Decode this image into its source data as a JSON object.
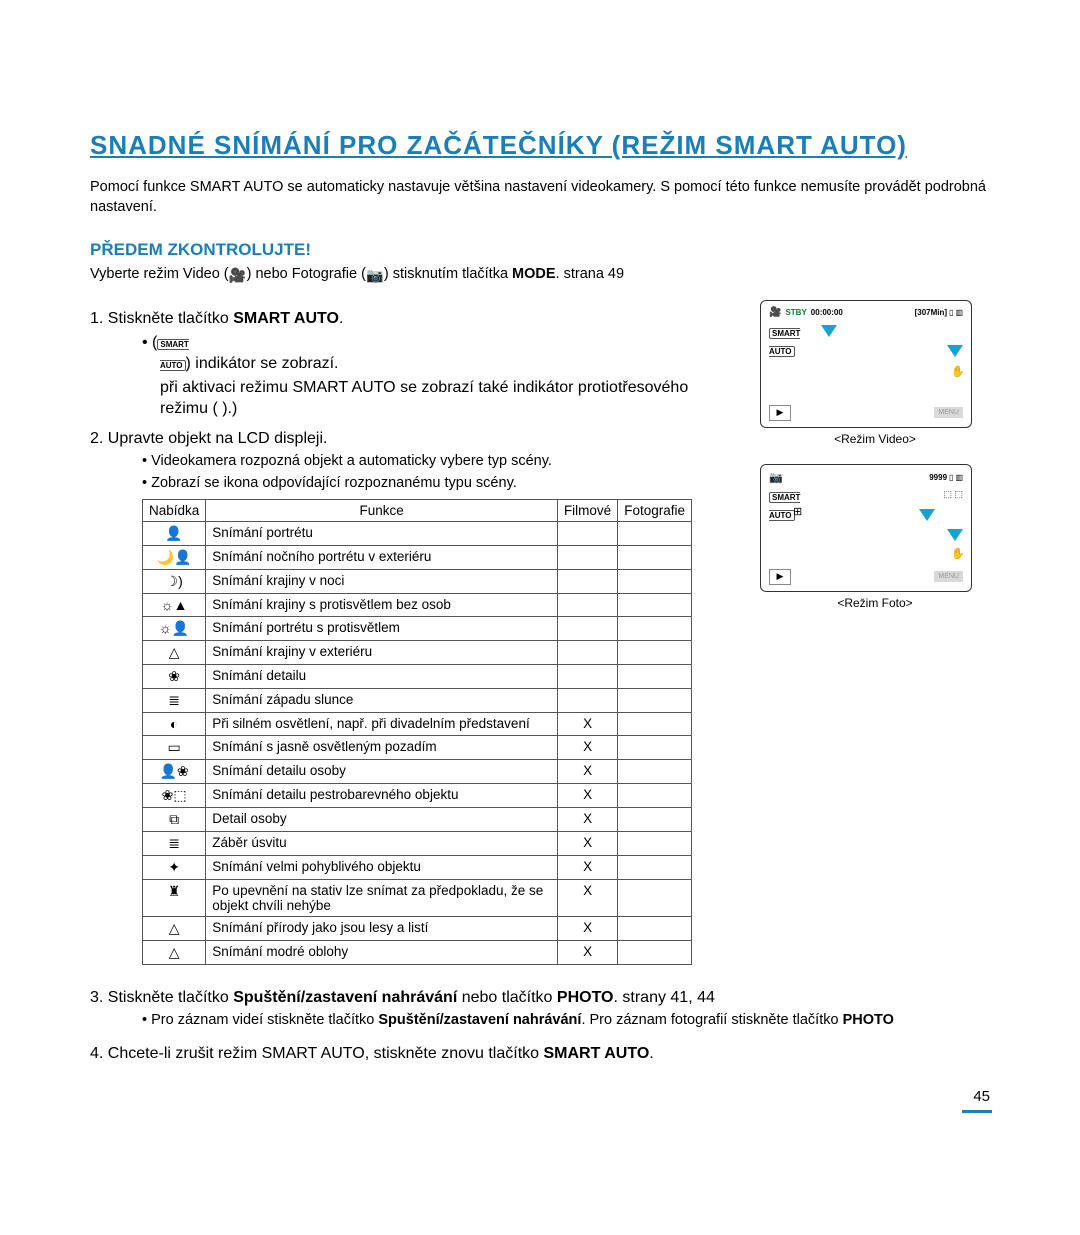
{
  "title": "SNADNÉ SNÍMÁNÍ PRO ZAČÁTEČNÍKY (REŽIM SMART AUTO)",
  "intro": "Pomocí funkce SMART AUTO se automaticky nastavuje většina nastavení videokamery. S pomocí této funkce nemusíte provádět podrobná nastavení.",
  "subhead": "PŘEDEM ZKONTROLUJTE!",
  "preinstr_pre": "Vyberte režim Video (",
  "preinstr_mid": ") nebo Fotografie (",
  "preinstr_post": ") stisknutím tlačítka ",
  "preinstr_mode": "MODE",
  "preinstr_page": ". strana 49",
  "step1_num": "1.",
  "step1_a": " Stiskněte tlačítko ",
  "step1_b": "SMART AUTO",
  "step1_c": ".",
  "step1_sub1_a": "(",
  "step1_sub1_b": ") indikátor se zobrazí.",
  "step1_sub2": "při aktivaci režimu SMART AUTO se zobrazí také indikátor protiotřesového režimu (          ).)",
  "step2_num": "2.",
  "step2_txt": " Upravte objekt na LCD displeji.",
  "step2_sub1": "Videokamera rozpozná objekt a automaticky vybere typ scény.",
  "step2_sub2": "Zobrazí se ikona odpovídající rozpoznanému typu scény.",
  "table": {
    "headers": [
      "Nabídka",
      "Funkce",
      "Filmové",
      "Fotografie"
    ],
    "rows": [
      {
        "icon": "👤",
        "fn": "Snímání portrétu",
        "m": "",
        "f": ""
      },
      {
        "icon": "🌙👤",
        "fn": "Snímání nočního portrétu v exteriéru",
        "m": "",
        "f": ""
      },
      {
        "icon": "☽)",
        "fn": "Snímání krajiny v noci",
        "m": "",
        "f": ""
      },
      {
        "icon": "☼▲",
        "fn": "Snímání krajiny s protisvětlem bez osob",
        "m": "",
        "f": ""
      },
      {
        "icon": "☼👤",
        "fn": "Snímání portrétu s protisvětlem",
        "m": "",
        "f": ""
      },
      {
        "icon": "△",
        "fn": "Snímání krajiny v exteriéru",
        "m": "",
        "f": ""
      },
      {
        "icon": "❀",
        "fn": "Snímání detailu",
        "m": "",
        "f": ""
      },
      {
        "icon": "≣",
        "fn": "Snímání západu slunce",
        "m": "",
        "f": ""
      },
      {
        "icon": "◐",
        "fn": "Při silném osvětlení, např. při divadelním představení",
        "m": "X",
        "f": ""
      },
      {
        "icon": "▭",
        "fn": "Snímání s jasně osvětleným pozadím",
        "m": "X",
        "f": ""
      },
      {
        "icon": "👤❀",
        "fn": "Snímání detailu osoby",
        "m": "X",
        "f": ""
      },
      {
        "icon": "❀⬚",
        "fn": "Snímání detailu pestrobarevného objektu",
        "m": "X",
        "f": ""
      },
      {
        "icon": "⧉",
        "fn": "Detail osoby",
        "m": "X",
        "f": ""
      },
      {
        "icon": "≣",
        "fn": "Záběr úsvitu",
        "m": "X",
        "f": ""
      },
      {
        "icon": "✦",
        "fn": "Snímání velmi pohyblivého objektu",
        "m": "X",
        "f": ""
      },
      {
        "icon": "♜",
        "fn": "Po upevnění na stativ lze snímat za předpokladu, že se objekt chvíli nehýbe",
        "m": "X",
        "f": ""
      },
      {
        "icon": "△",
        "fn": "Snímání přírody jako jsou lesy a listí",
        "m": "X",
        "f": ""
      },
      {
        "icon": "△",
        "fn": "Snímání modré oblohy",
        "m": "X",
        "f": ""
      }
    ]
  },
  "step3_num": "3.",
  "step3_a": " Stiskněte tlačítko ",
  "step3_b": "Spuštění/zastavení nahrávání",
  "step3_c": " nebo tlačítko ",
  "step3_d": "PHOTO",
  "step3_pages": ". strany 41, 44",
  "step3_sub_a": "Pro záznam videí stiskněte tlačítko ",
  "step3_sub_b": "Spuštění/zastavení nahrávání",
  "step3_sub_c": ". Pro záznam fotografií stiskněte tlačítko ",
  "step3_sub_d": "PHOTO",
  "step4_num": "4.",
  "step4_a": " Chcete-li zrušit režim SMART AUTO, stiskněte znovu tlačítko ",
  "step4_b": "SMART AUTO",
  "step4_c": ".",
  "screen1": {
    "stby": "STBY",
    "time": "00:00:00",
    "remain": "[307Min]",
    "menu": "MENU",
    "caption": "<Režim Video>"
  },
  "screen2": {
    "count": "9999",
    "menu": "MENU",
    "caption": "<Režim Foto>"
  },
  "pagenum": "45"
}
